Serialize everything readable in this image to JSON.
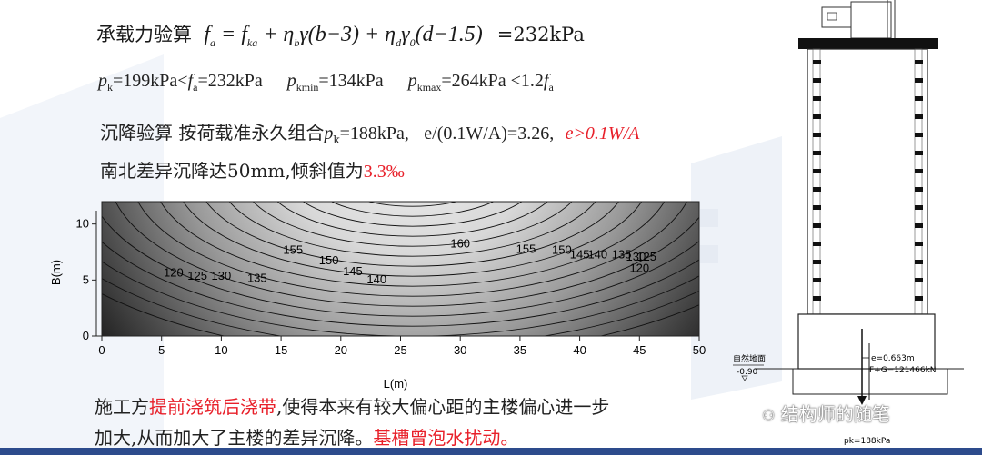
{
  "formula": {
    "label": "承载力验算",
    "result": "=232kPa"
  },
  "pressures": {
    "pk": "=199kPa<",
    "fa_label": "f",
    "fa_sub": "a",
    "fa_val": "=232kPa",
    "pkmin_sub": "kmin",
    "pkmin_val": "=134kPa",
    "pkmax_sub": "kmax",
    "pkmax_val": "=264kPa <1.2"
  },
  "settlement": {
    "label": "沉降验算 按荷载准永久组合",
    "pk_val": "=188kPa,",
    "ratio": "e/(0.1W/A)=3.26,",
    "conclusion": "e>0.1W/A"
  },
  "tilt": {
    "text": "南北差异沉降达50mm,倾斜值为",
    "value": "3.3‰"
  },
  "chart_data": {
    "type": "contour",
    "xlabel": "L(m)",
    "ylabel": "B(m)",
    "xlim": [
      0,
      50
    ],
    "ylim": [
      0,
      12
    ],
    "x_ticks": [
      "0",
      "5",
      "10",
      "15",
      "20",
      "25",
      "30",
      "35",
      "40",
      "45",
      "50"
    ],
    "y_ticks": [
      "0",
      "5",
      "10"
    ],
    "contour_labels": [
      {
        "text": "160",
        "x": 30,
        "y": 8.2
      },
      {
        "text": "155",
        "x": 16,
        "y": 7.6
      },
      {
        "text": "155",
        "x": 35.5,
        "y": 7.7
      },
      {
        "text": "150",
        "x": 19,
        "y": 6.7
      },
      {
        "text": "150",
        "x": 38.5,
        "y": 7.6
      },
      {
        "text": "145",
        "x": 21,
        "y": 5.7
      },
      {
        "text": "145",
        "x": 40,
        "y": 7.2
      },
      {
        "text": "140",
        "x": 23,
        "y": 5.0
      },
      {
        "text": "140",
        "x": 41.5,
        "y": 7.2
      },
      {
        "text": "135",
        "x": 13,
        "y": 5.1
      },
      {
        "text": "135",
        "x": 43.5,
        "y": 7.2
      },
      {
        "text": "130",
        "x": 10,
        "y": 5.3
      },
      {
        "text": "130",
        "x": 44.7,
        "y": 7.0
      },
      {
        "text": "125",
        "x": 8,
        "y": 5.3
      },
      {
        "text": "125",
        "x": 45.6,
        "y": 7.0
      },
      {
        "text": "120",
        "x": 6,
        "y": 5.6
      },
      {
        "text": "120",
        "x": 45,
        "y": 6.0
      }
    ]
  },
  "construction": {
    "line1_a": "施工方",
    "line1_red": "提前浇筑后浇带",
    "line1_b": ",使得本来有较大偏心距的主楼偏心进一步",
    "line2_a": "加大,从而加大了主楼的差异沉降。",
    "line2_red": "基槽曾泡水扰动。"
  },
  "building": {
    "ground_label": "自然地面",
    "ground_elev": "-0.90",
    "ecc": "e=0.663m",
    "load": "F+G=121466kN",
    "pk": "pk=188kPa"
  },
  "watermark": "结构师的随笔",
  "colors": {
    "accent_red": "#e8202a",
    "bar_blue": "#2d4b8c"
  }
}
